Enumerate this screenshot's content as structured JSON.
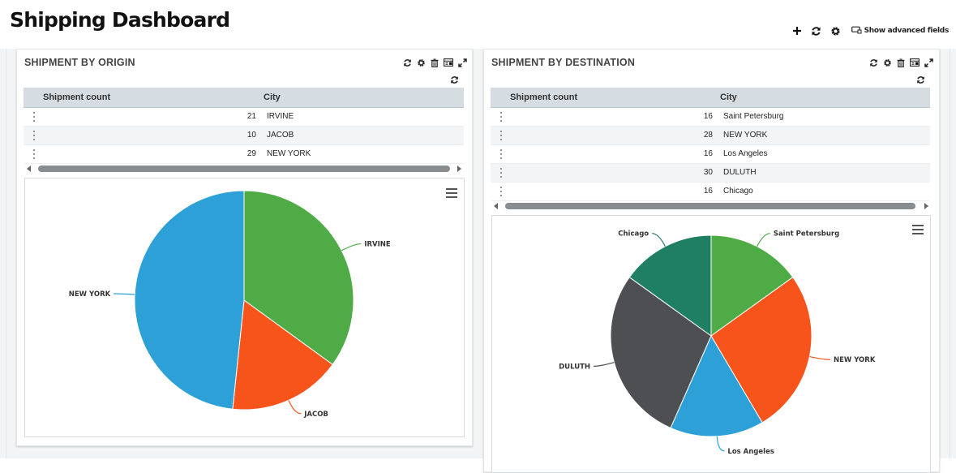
{
  "app": {
    "title": "Shipping Dashboard",
    "actions": [
      {
        "icon": "plus-icon"
      },
      {
        "icon": "refresh-icon"
      },
      {
        "icon": "gear-icon"
      }
    ],
    "advanced_label": "Show advanced fields"
  },
  "panels": {
    "origin": {
      "title": "SHIPMENT BY ORIGIN",
      "tools": [
        "refresh-icon",
        "gear-icon",
        "trash-icon",
        "card-icon",
        "expand-icon"
      ],
      "columns": [
        "Shipment count",
        "City"
      ],
      "rows": [
        {
          "count": "21",
          "city": "IRVINE"
        },
        {
          "count": "10",
          "city": "JACOB"
        },
        {
          "count": "29",
          "city": "NEW YORK"
        }
      ]
    },
    "destination": {
      "title": "SHIPMENT BY DESTINATION",
      "tools": [
        "refresh-icon",
        "gear-icon",
        "trash-icon",
        "card-icon",
        "expand-icon"
      ],
      "columns": [
        "Shipment count",
        "City"
      ],
      "rows": [
        {
          "count": "16",
          "city": "Saint Petersburg"
        },
        {
          "count": "28",
          "city": "NEW YORK"
        },
        {
          "count": "16",
          "city": "Los Angeles"
        },
        {
          "count": "30",
          "city": "DULUTH"
        },
        {
          "count": "16",
          "city": "Chicago"
        }
      ]
    }
  },
  "chart_data": [
    {
      "type": "pie",
      "categories": [
        "IRVINE",
        "JACOB",
        "NEW YORK"
      ],
      "values": [
        21,
        10,
        29
      ],
      "colors": [
        "#4fab46",
        "#f7541c",
        "#2ca0d7"
      ]
    },
    {
      "type": "pie",
      "categories": [
        "Saint Petersburg",
        "NEW YORK",
        "Los Angeles",
        "DULUTH",
        "Chicago"
      ],
      "values": [
        16,
        28,
        16,
        30,
        16
      ],
      "colors": [
        "#4fab46",
        "#f7541c",
        "#2ca0d7",
        "#4e4f52",
        "#1e7f63"
      ]
    }
  ]
}
